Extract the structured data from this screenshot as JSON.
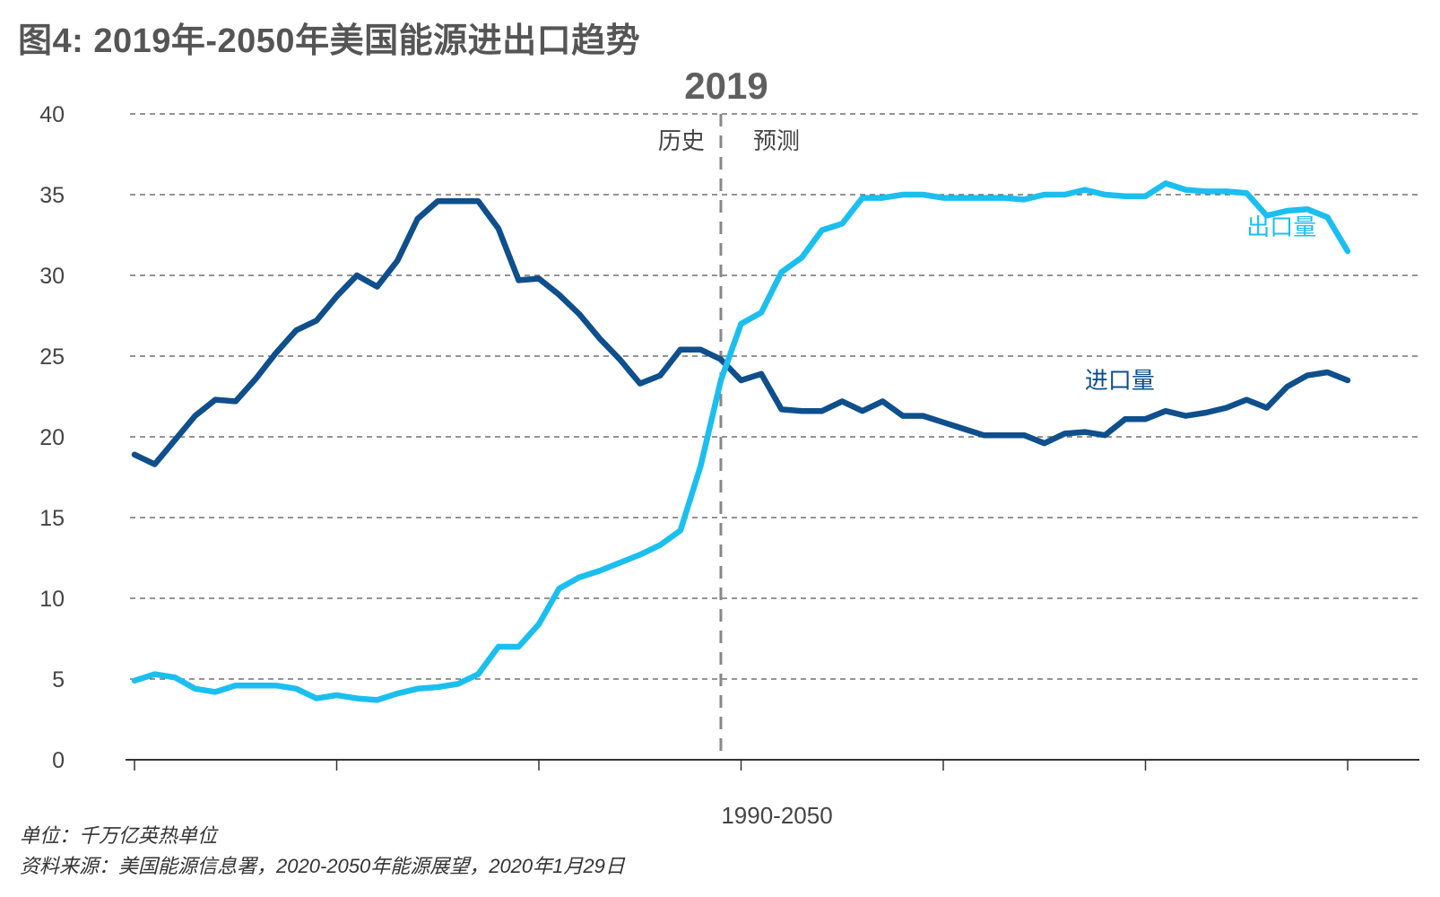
{
  "title": "图4: 2019年-2050年美国能源进出口趋势",
  "chart_data": {
    "type": "line",
    "title": "2019",
    "xlabel": "1990-2050",
    "ylabel": "",
    "ylim": [
      0,
      40
    ],
    "yticks": [
      0,
      5,
      10,
      15,
      20,
      25,
      30,
      35,
      40
    ],
    "xlim": [
      1990,
      2050
    ],
    "xticks": [
      1990,
      2000,
      2010,
      2020,
      2030,
      2040,
      2050
    ],
    "grid": true,
    "divider": {
      "year": 2019,
      "left_label": "历史",
      "right_label": "预测"
    },
    "x": [
      1990,
      1991,
      1992,
      1993,
      1994,
      1995,
      1996,
      1997,
      1998,
      1999,
      2000,
      2001,
      2002,
      2003,
      2004,
      2005,
      2006,
      2007,
      2008,
      2009,
      2010,
      2011,
      2012,
      2013,
      2014,
      2015,
      2016,
      2017,
      2018,
      2019,
      2020,
      2021,
      2022,
      2023,
      2024,
      2025,
      2026,
      2027,
      2028,
      2029,
      2030,
      2031,
      2032,
      2033,
      2034,
      2035,
      2036,
      2037,
      2038,
      2039,
      2040,
      2041,
      2042,
      2043,
      2044,
      2045,
      2046,
      2047,
      2048,
      2049,
      2050
    ],
    "series": [
      {
        "name": "进口量",
        "color": "#0E4F8C",
        "values": [
          18.9,
          18.3,
          19.8,
          21.3,
          22.3,
          22.2,
          23.6,
          25.2,
          26.6,
          27.2,
          28.7,
          30.0,
          29.3,
          30.9,
          33.5,
          34.6,
          34.6,
          34.6,
          32.9,
          29.7,
          29.8,
          28.8,
          27.6,
          26.1,
          24.8,
          23.3,
          23.8,
          25.4,
          25.4,
          24.8,
          23.5,
          23.9,
          21.7,
          21.6,
          21.6,
          22.2,
          21.6,
          22.2,
          21.3,
          21.3,
          20.9,
          20.5,
          20.1,
          20.1,
          20.1,
          19.6,
          20.2,
          20.3,
          20.1,
          21.1,
          21.1,
          21.6,
          21.3,
          21.5,
          21.8,
          22.3,
          21.8,
          23.1,
          23.8,
          24.0,
          23.5
        ]
      },
      {
        "name": "出口量",
        "color": "#1BBFEF",
        "values": [
          4.9,
          5.3,
          5.1,
          4.4,
          4.2,
          4.6,
          4.6,
          4.6,
          4.4,
          3.8,
          4.0,
          3.8,
          3.7,
          4.1,
          4.4,
          4.5,
          4.7,
          5.3,
          7.0,
          7.0,
          8.4,
          10.6,
          11.3,
          11.7,
          12.2,
          12.7,
          13.3,
          14.2,
          18.2,
          23.5,
          27.0,
          27.7,
          30.2,
          31.1,
          32.8,
          33.2,
          34.8,
          34.8,
          35.0,
          35.0,
          34.8,
          34.8,
          34.8,
          34.8,
          34.7,
          35.0,
          35.0,
          35.3,
          35.0,
          34.9,
          34.9,
          35.7,
          35.3,
          35.2,
          35.2,
          35.1,
          33.7,
          34.0,
          34.1,
          33.6,
          31.5
        ]
      }
    ],
    "annotations": [
      {
        "text": "出口量",
        "series": "出口量",
        "near_year": 2045,
        "near_value": 32.5
      },
      {
        "text": "进口量",
        "series": "进口量",
        "near_year": 2037,
        "near_value": 23.0
      }
    ]
  },
  "footer": {
    "unit": "单位：千万亿英热单位",
    "source": "资料来源：美国能源信息署，2020-2050年能源展望，2020年1月29日"
  }
}
